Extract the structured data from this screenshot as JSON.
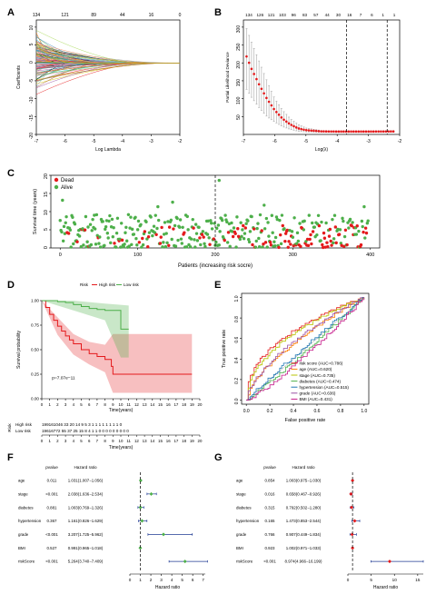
{
  "panels": {
    "A": {
      "label": "A",
      "top_ticks": [
        "134",
        "121",
        "89",
        "44",
        "16",
        "0"
      ],
      "x_ticks": [
        "-7",
        "-6",
        "-5",
        "-4",
        "-3",
        "-2"
      ],
      "y_ticks": [
        "10",
        "5",
        "0",
        "-5",
        "-10",
        "-15",
        "-20"
      ],
      "xlabel": "Log Lambda",
      "ylabel": "Coefficients"
    },
    "B": {
      "label": "B",
      "top_ticks": [
        "134",
        "126",
        "121",
        "103",
        "96",
        "83",
        "57",
        "44",
        "30",
        "16",
        "7",
        "6",
        "1",
        "1"
      ],
      "x_ticks": [
        "-7",
        "-6",
        "-5",
        "-4",
        "-3",
        "-2"
      ],
      "y_ticks": [
        "300",
        "250",
        "200",
        "150",
        "100",
        "50"
      ],
      "xlabel": "Log(λ)",
      "ylabel": "Partial Likelihood Deviance"
    },
    "C": {
      "label": "C",
      "legend": [
        "Dead",
        "Alive"
      ],
      "x_ticks": [
        "0",
        "100",
        "200",
        "300",
        "400"
      ],
      "y_ticks": [
        "0",
        "5",
        "10",
        "15",
        "20"
      ],
      "xlabel": "Patients (increasing risk socre)",
      "ylabel": "Survival time (years)"
    },
    "D": {
      "label": "D",
      "legend_title": "Risk",
      "legend": [
        "High risk",
        "Low risk"
      ],
      "pvalue": "p=7.07e−11",
      "y_ticks": [
        "1.00",
        "0.75",
        "0.50",
        "0.25",
        "0.00"
      ],
      "x_ticks": [
        "0",
        "1",
        "2",
        "3",
        "4",
        "5",
        "6",
        "7",
        "8",
        "9",
        "10",
        "11",
        "12",
        "13",
        "14",
        "15",
        "16",
        "17",
        "18",
        "19",
        "20"
      ],
      "xlabel": "Time(years)",
      "ylabel": "Survival probability",
      "risk_table_label": "Risk",
      "risk_rows": [
        {
          "name": "High risk",
          "numbers": "199161046 33 20 14 9 5 3 1 1 1 1 1 1 1 1 0"
        },
        {
          "name": "Low risk",
          "numbers": "19616772 55 37 25 15 8 4 1 1 0 0 0 0 0 0 0 0 0"
        }
      ],
      "risk_table_xlabel": "Time(years)",
      "colors": {
        "high": "#e41a1c",
        "low": "#4daf4a"
      }
    },
    "E": {
      "label": "E",
      "x_ticks": [
        "0.0",
        "0.2",
        "0.4",
        "0.6",
        "0.8",
        "1.0"
      ],
      "y_ticks": [
        "0.0",
        "0.2",
        "0.4",
        "0.6",
        "0.8",
        "1.0"
      ],
      "xlabel": "False positive rate",
      "ylabel": "True positive rate",
      "legend": [
        {
          "text": "risk score (AUC=0.786)",
          "color": "#e41a1c"
        },
        {
          "text": "age (AUC=0.620)",
          "color": "#ff7f00"
        },
        {
          "text": "stage (AUC=0.735)",
          "color": "#b8c300"
        },
        {
          "text": "diabetes (AUC=0.474)",
          "color": "#4daf4a"
        },
        {
          "text": "hypertension (AUC=0.515)",
          "color": "#1f77b4"
        },
        {
          "text": "grade (AUC=0.636)",
          "color": "#984ea3"
        },
        {
          "text": "BMI (AUC=0.431)",
          "color": "#c51b8a"
        }
      ]
    },
    "F": {
      "label": "F",
      "col_pvalue": "pvalue",
      "col_hr": "Hazard ratio",
      "rows": [
        {
          "name": "age",
          "pvalue": "0.011",
          "hr": "1.031(1.007−1.056)"
        },
        {
          "name": "stage",
          "pvalue": "<0.001",
          "hr": "2.038(1.636−2.534)"
        },
        {
          "name": "diabetes",
          "pvalue": "0.881",
          "hr": "1.003(0.769−1.326)"
        },
        {
          "name": "hypertension",
          "pvalue": "0.367",
          "hr": "1.161(0.826−1.629)"
        },
        {
          "name": "grade",
          "pvalue": "<0.001",
          "hr": "3.207(1.725−5.962)"
        },
        {
          "name": "BMI",
          "pvalue": "0.527",
          "hr": "0.991(0.965−1.018)"
        },
        {
          "name": "riskScore",
          "pvalue": "<0.001",
          "hr": "5.264(3.740−7.409)"
        }
      ],
      "x_ticks": [
        "0",
        "1",
        "2",
        "3",
        "4",
        "5",
        "6",
        "7"
      ],
      "xlabel": "Hazard ratio",
      "color": "#4daf4a"
    },
    "G": {
      "label": "G",
      "col_pvalue": "pvalue",
      "col_hr": "Hazard ratio",
      "rows": [
        {
          "name": "age",
          "pvalue": "0.854",
          "hr": "1.003(0.975−1.030)"
        },
        {
          "name": "stage",
          "pvalue": "0.016",
          "hr": "0.658(0.467−0.926)"
        },
        {
          "name": "diabetes",
          "pvalue": "0.315",
          "hr": "0.792(0.502−1.280)"
        },
        {
          "name": "hypertension",
          "pvalue": "0.165",
          "hr": "1.473(0.853−2.544)"
        },
        {
          "name": "grade",
          "pvalue": "0.766",
          "hr": "0.907(0.449−1.834)"
        },
        {
          "name": "BMI",
          "pvalue": "0.923",
          "hr": "1.002(0.971−1.033)"
        },
        {
          "name": "riskScore",
          "pvalue": "<0.001",
          "hr": "8.974(4.966−16.199)"
        }
      ],
      "x_ticks": [
        "0",
        "5",
        "10",
        "15"
      ],
      "xlabel": "Hazard ratio",
      "color": "#e41a1c"
    }
  },
  "chart_data": [
    {
      "panel": "A",
      "type": "line",
      "description_source": "LASSO coefficient paths",
      "x_range": [
        -7,
        -2
      ],
      "y_range": [
        -20,
        12
      ],
      "top_axis_counts": [
        134,
        121,
        89,
        44,
        16,
        0
      ],
      "n_paths": 134
    },
    {
      "panel": "B",
      "type": "scatter",
      "x": [
        -7,
        -6.75,
        -6.5,
        -6.25,
        -6,
        -5.75,
        -5.5,
        -5.25,
        -5,
        -4.5,
        -4,
        -3.5,
        -3,
        -2.5,
        -2
      ],
      "y": [
        240,
        185,
        140,
        100,
        68,
        44,
        28,
        17,
        12,
        8.5,
        8,
        8,
        8,
        8.2,
        8.5
      ],
      "error_low": [
        140,
        105,
        75,
        50,
        35,
        22,
        14,
        9,
        7,
        6,
        6,
        6,
        6,
        6,
        6
      ],
      "error_high": [
        320,
        260,
        205,
        150,
        100,
        68,
        44,
        28,
        18,
        11,
        10,
        10,
        10,
        10.5,
        11
      ],
      "vlines_x": [
        -3.7,
        -2.4
      ],
      "y_range": [
        0,
        320
      ],
      "x_range": [
        -7,
        -2
      ]
    },
    {
      "panel": "C",
      "type": "scatter",
      "series": [
        "Dead",
        "Alive"
      ],
      "x_range": [
        0,
        400
      ],
      "y_range": [
        0,
        20
      ],
      "vline_x": 200,
      "colors": {
        "Dead": "#e41a1c",
        "Alive": "#4daf4a"
      }
    },
    {
      "panel": "D",
      "type": "line",
      "series": [
        {
          "name": "High risk",
          "x": [
            0,
            0.5,
            1,
            1.5,
            2,
            2.5,
            3,
            3.5,
            4,
            5,
            6,
            7,
            8,
            8.8,
            9,
            19
          ],
          "y": [
            1,
            0.93,
            0.86,
            0.8,
            0.74,
            0.69,
            0.64,
            0.6,
            0.56,
            0.5,
            0.46,
            0.43,
            0.4,
            0.33,
            0.25,
            0.25
          ]
        },
        {
          "name": "Low risk",
          "x": [
            0,
            1,
            2,
            3,
            4,
            5,
            6,
            7,
            8,
            9,
            10,
            11
          ],
          "y": [
            1,
            1,
            0.99,
            0.98,
            0.96,
            0.94,
            0.92,
            0.91,
            0.9,
            0.9,
            0.71,
            0.71
          ]
        }
      ],
      "x_range": [
        0,
        20
      ],
      "y_range": [
        0,
        1
      ]
    },
    {
      "panel": "E",
      "type": "line",
      "x_range": [
        0,
        1
      ],
      "y_range": [
        0,
        1
      ],
      "series": [
        {
          "name": "risk score",
          "auc": 0.786
        },
        {
          "name": "age",
          "auc": 0.62
        },
        {
          "name": "stage",
          "auc": 0.735
        },
        {
          "name": "diabetes",
          "auc": 0.474
        },
        {
          "name": "hypertension",
          "auc": 0.515
        },
        {
          "name": "grade",
          "auc": 0.636
        },
        {
          "name": "BMI",
          "auc": 0.431
        }
      ]
    },
    {
      "panel": "F",
      "type": "scatter",
      "categories": [
        "age",
        "stage",
        "diabetes",
        "hypertension",
        "grade",
        "BMI",
        "riskScore"
      ],
      "hr": [
        1.031,
        2.038,
        1.003,
        1.161,
        3.207,
        0.991,
        5.264
      ],
      "low": [
        1.007,
        1.636,
        0.769,
        0.826,
        1.725,
        0.965,
        3.74
      ],
      "high": [
        1.056,
        2.534,
        1.326,
        1.629,
        5.962,
        1.018,
        7.409
      ],
      "x_range": [
        0,
        7
      ]
    },
    {
      "panel": "G",
      "type": "scatter",
      "categories": [
        "age",
        "stage",
        "diabetes",
        "hypertension",
        "grade",
        "BMI",
        "riskScore"
      ],
      "hr": [
        1.003,
        0.658,
        0.792,
        1.473,
        0.907,
        1.002,
        8.974
      ],
      "low": [
        0.975,
        0.467,
        0.502,
        0.853,
        0.449,
        0.971,
        4.966
      ],
      "high": [
        1.03,
        0.926,
        1.28,
        2.544,
        1.834,
        1.033,
        16.199
      ],
      "x_range": [
        0,
        16
      ]
    }
  ]
}
